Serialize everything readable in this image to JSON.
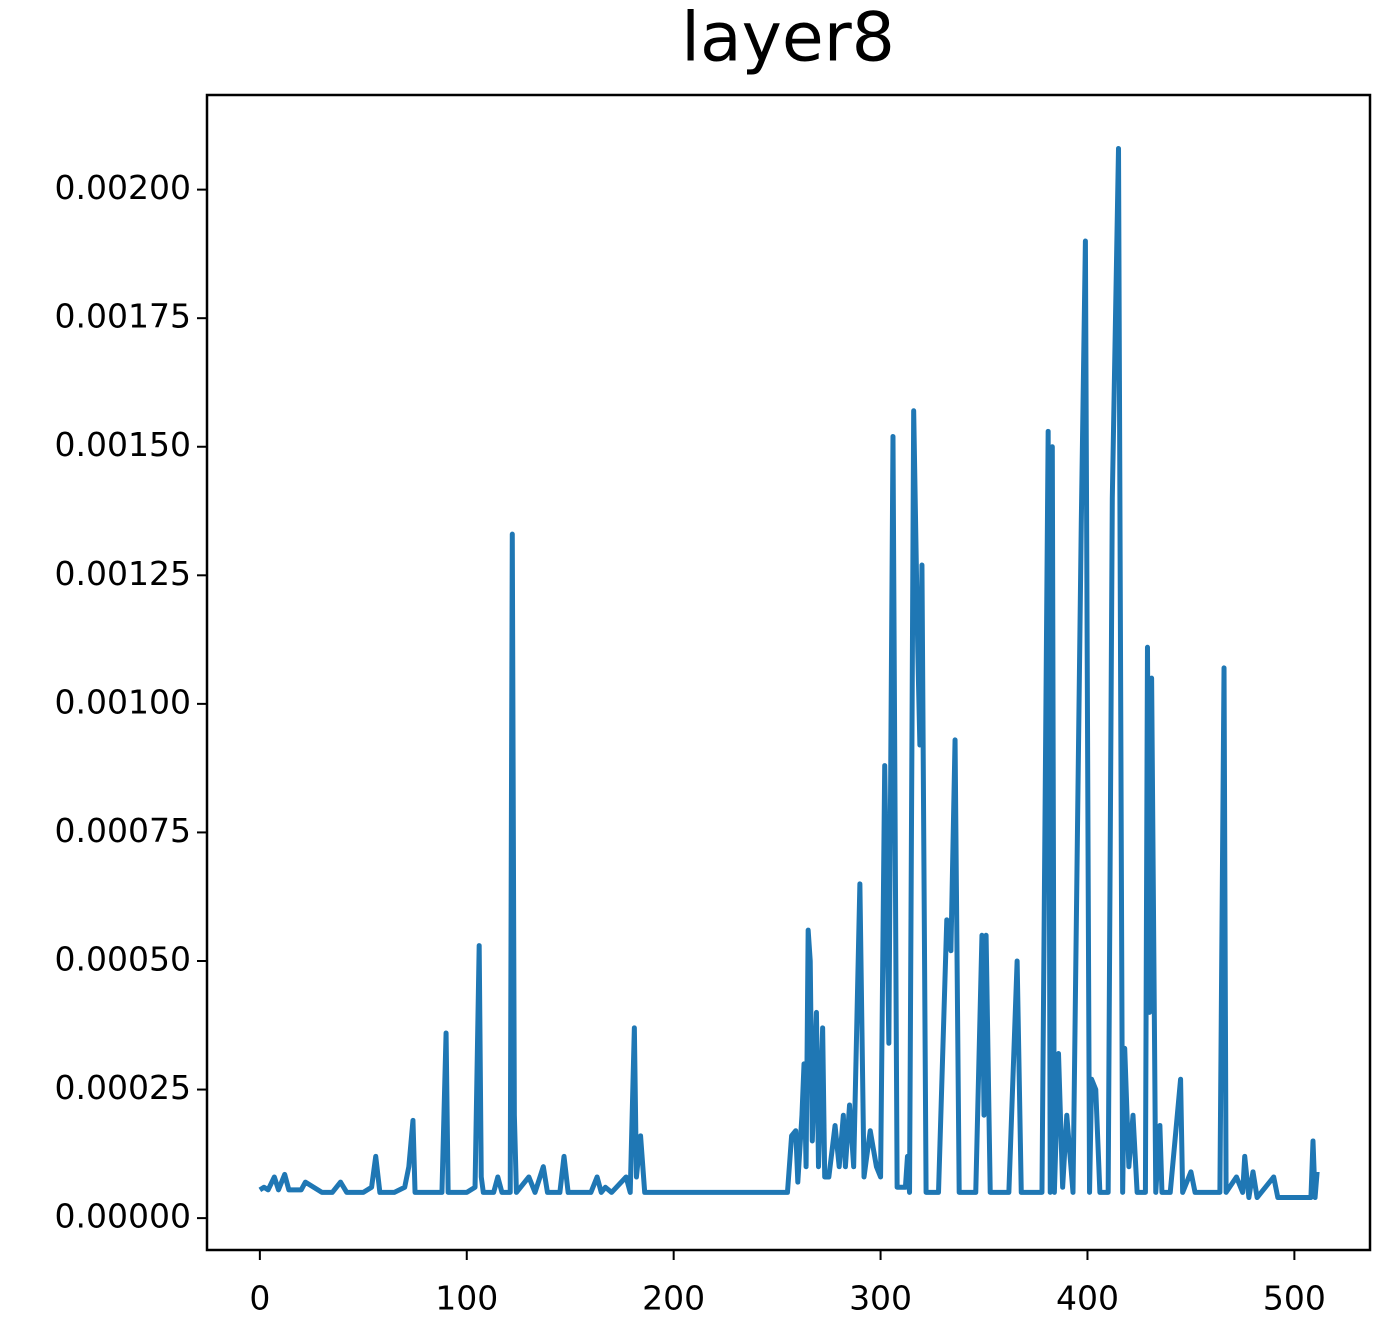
{
  "chart_data": {
    "type": "line",
    "title": "layer8",
    "x": [
      0,
      2,
      4,
      7,
      9,
      12,
      14,
      20,
      22,
      26,
      30,
      35,
      39,
      42,
      50,
      54,
      56,
      58,
      65,
      70,
      72,
      74,
      75,
      85,
      88,
      90,
      91,
      100,
      104,
      106,
      107,
      108,
      113,
      115,
      117,
      121,
      122,
      123,
      124,
      130,
      133,
      137,
      139,
      145,
      147,
      149,
      160,
      163,
      165,
      167,
      170,
      177,
      179,
      181,
      182,
      184,
      186,
      195,
      200,
      215,
      230,
      250,
      255,
      257,
      259,
      260,
      262,
      263,
      264,
      265,
      266,
      267,
      269,
      270,
      272,
      273,
      275,
      278,
      280,
      282,
      283,
      285,
      287,
      290,
      292,
      295,
      298,
      300,
      302,
      304,
      306,
      308,
      312,
      313,
      314,
      316,
      318,
      319,
      320,
      322,
      328,
      332,
      334,
      336,
      338,
      346,
      349,
      350,
      351,
      353,
      362,
      366,
      368,
      375,
      378,
      381,
      382,
      383,
      384,
      386,
      388,
      390,
      393,
      397,
      399,
      401,
      402,
      404,
      406,
      410,
      412,
      415,
      417,
      418,
      420,
      422,
      424,
      428,
      429,
      430,
      431,
      433,
      435,
      436,
      440,
      445,
      446,
      450,
      452,
      460,
      464,
      466,
      467,
      472,
      475,
      476,
      478,
      480,
      482,
      490,
      492,
      500,
      508,
      509,
      510,
      511
    ],
    "series": [
      {
        "color": "#1f77b4",
        "values": [
          5.5e-05,
          6e-05,
          5.5e-05,
          8e-05,
          5.5e-05,
          8.5e-05,
          5.5e-05,
          5.5e-05,
          7e-05,
          6e-05,
          5e-05,
          5e-05,
          7e-05,
          5e-05,
          5e-05,
          6e-05,
          0.00012,
          5e-05,
          5e-05,
          6e-05,
          0.0001,
          0.00019,
          5e-05,
          5e-05,
          5e-05,
          0.00036,
          5e-05,
          5e-05,
          6e-05,
          0.00053,
          8e-05,
          5e-05,
          5e-05,
          8e-05,
          5e-05,
          5e-05,
          0.00133,
          0.0002,
          5e-05,
          8e-05,
          5e-05,
          0.0001,
          5e-05,
          5e-05,
          0.00012,
          5e-05,
          5e-05,
          8e-05,
          5e-05,
          6e-05,
          5e-05,
          8e-05,
          5e-05,
          0.00037,
          8e-05,
          0.00016,
          5e-05,
          5e-05,
          5e-05,
          5e-05,
          5e-05,
          5e-05,
          5e-05,
          0.00016,
          0.00017,
          7e-05,
          0.0002,
          0.0003,
          0.0001,
          0.00056,
          0.0005,
          0.00015,
          0.0004,
          0.0001,
          0.00037,
          8e-05,
          8e-05,
          0.00018,
          0.0001,
          0.0002,
          0.0001,
          0.00022,
          0.0001,
          0.00065,
          8e-05,
          0.00017,
          0.0001,
          8e-05,
          0.00088,
          0.00034,
          0.00152,
          6e-05,
          6e-05,
          0.00012,
          5e-05,
          0.00157,
          0.0011,
          0.00092,
          0.00127,
          5e-05,
          5e-05,
          0.00058,
          0.00052,
          0.00093,
          5e-05,
          5e-05,
          0.00055,
          0.0002,
          0.00055,
          5e-05,
          5e-05,
          0.0005,
          5e-05,
          5e-05,
          5e-05,
          0.00153,
          5e-05,
          0.0015,
          5e-05,
          0.00032,
          6e-05,
          0.0002,
          5e-05,
          0.00135,
          0.0019,
          5e-05,
          0.00027,
          0.00025,
          5e-05,
          5e-05,
          0.0014,
          0.00208,
          5e-05,
          0.00033,
          0.0001,
          0.0002,
          5e-05,
          5e-05,
          0.00111,
          0.0004,
          0.00105,
          5e-05,
          0.00018,
          5e-05,
          5e-05,
          0.00027,
          5e-05,
          9e-05,
          5e-05,
          5e-05,
          5e-05,
          0.00107,
          5e-05,
          8e-05,
          5e-05,
          0.00012,
          4e-05,
          9e-05,
          4e-05,
          8e-05,
          4e-05,
          4e-05,
          4e-05,
          0.00015,
          4e-05,
          9e-05
        ]
      }
    ],
    "xlim": [
      -25.55,
      536.55
    ],
    "xticks": [
      0,
      100,
      200,
      300,
      400,
      500
    ],
    "ylim": [
      -6.2e-05,
      0.002184
    ],
    "yticks": [
      {
        "value": 0,
        "label": "0.00000"
      },
      {
        "value": 0.00025,
        "label": "0.00025"
      },
      {
        "value": 0.0005,
        "label": "0.00050"
      },
      {
        "value": 0.00075,
        "label": "0.00075"
      },
      {
        "value": 0.001,
        "label": "0.00100"
      },
      {
        "value": 0.00125,
        "label": "0.00125"
      },
      {
        "value": 0.0015,
        "label": "0.00150"
      },
      {
        "value": 0.00175,
        "label": "0.00175"
      },
      {
        "value": 0.002,
        "label": "0.00200"
      }
    ]
  }
}
